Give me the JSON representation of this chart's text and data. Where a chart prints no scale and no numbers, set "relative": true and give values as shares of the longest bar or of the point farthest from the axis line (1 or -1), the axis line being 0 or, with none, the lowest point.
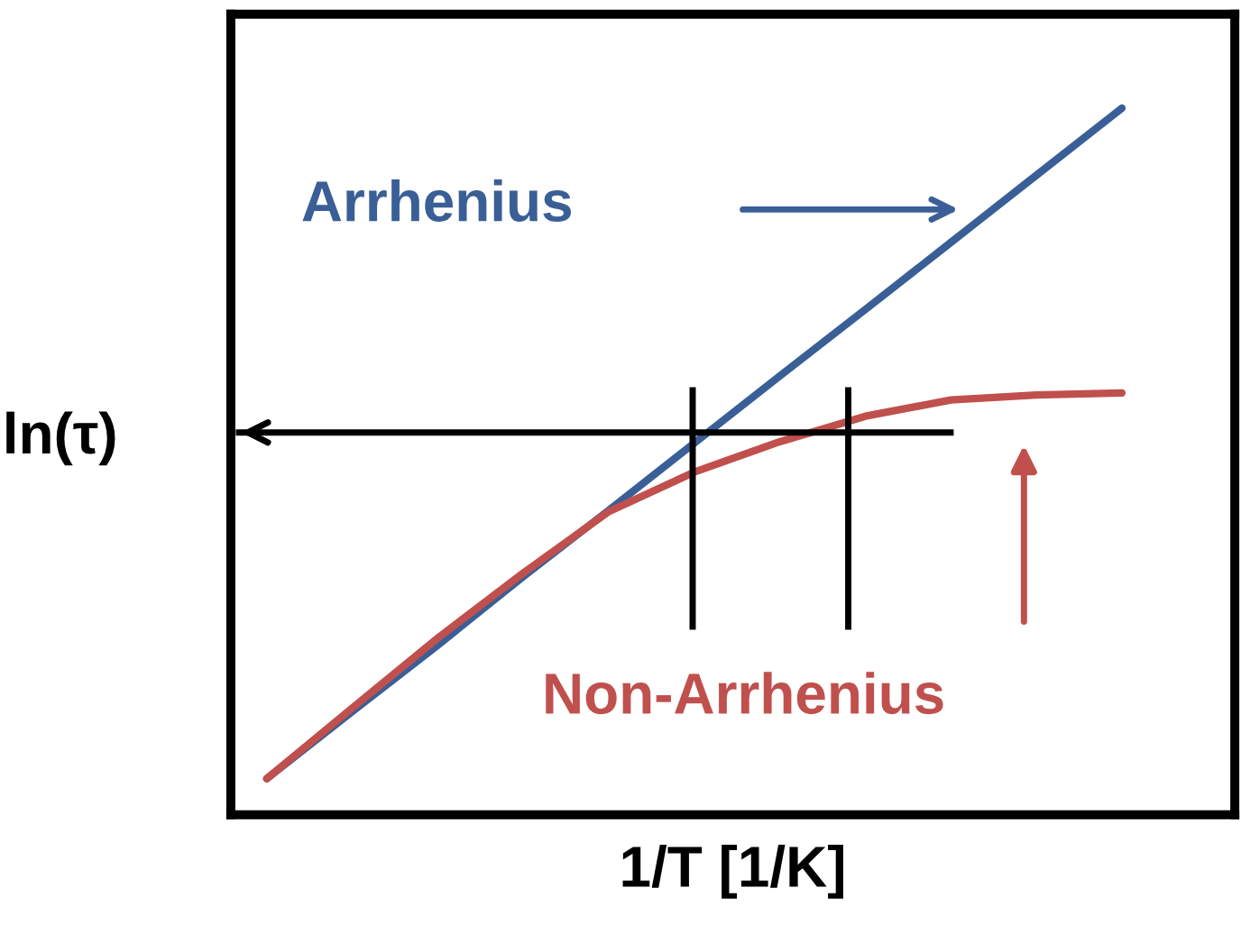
{
  "chart_data": {
    "type": "line",
    "relative": true,
    "xlabel": "1/T [1/K]",
    "ylabel": "ln(τ)",
    "categories": [
      null,
      null,
      null,
      null,
      null,
      null,
      null,
      null,
      null,
      null,
      null
    ],
    "series": [
      {
        "color": "#3a5f97",
        "values": [
          0.051,
          0.146,
          0.24,
          0.337,
          0.431,
          0.526,
          0.621,
          0.715,
          0.81,
          0.905,
          1.0
        ]
      },
      {
        "color": "#c0504d",
        "values": [
          0.051,
          0.151,
          0.25,
          0.342,
          0.429,
          0.485,
          0.528,
          0.564,
          0.587,
          0.594,
          0.597
        ]
      }
    ],
    "ref_lines": [
      {
        "axis": "y",
        "value": 0.541,
        "color": "#000000"
      }
    ],
    "annotations": [
      "Arrhenius",
      "Non-Arrhenius"
    ],
    "grid": false,
    "legend": false,
    "marker": "none",
    "line_style": "solid",
    "tick_labels": false
  }
}
